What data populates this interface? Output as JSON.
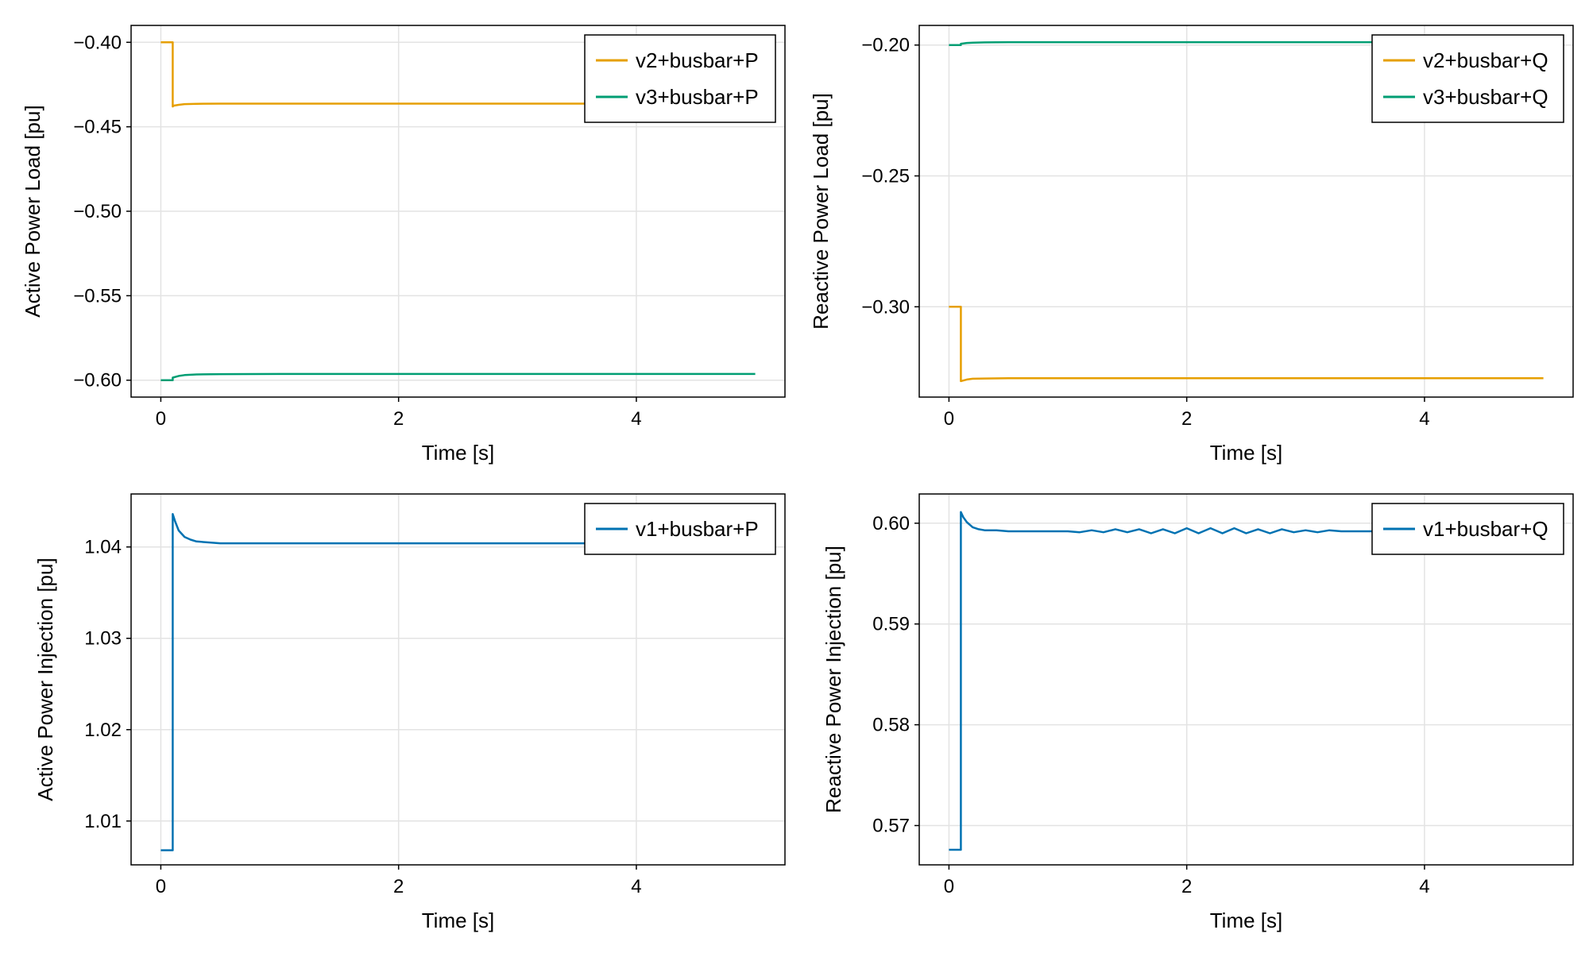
{
  "chart_data": [
    {
      "type": "line",
      "xlabel": "Time [s]",
      "ylabel": "Active Power Load [pu]",
      "xlim": [
        -0.25,
        5.25
      ],
      "ylim": [
        -0.61,
        -0.39
      ],
      "xticks": [
        0,
        2,
        4
      ],
      "xtick_labels": [
        "0",
        "2",
        "4"
      ],
      "yticks": [
        -0.4,
        -0.45,
        -0.5,
        -0.55,
        -0.6
      ],
      "ytick_labels": [
        "−0.40",
        "−0.45",
        "−0.50",
        "−0.55",
        "−0.60"
      ],
      "grid": true,
      "legend_position": "top-right",
      "series": [
        {
          "name": "v2+busbar+P",
          "color": "#E69F00",
          "x": [
            0,
            0.1,
            0.1,
            0.11,
            0.15,
            0.2,
            0.3,
            0.5,
            1.0,
            2.0,
            3.0,
            4.0,
            5.0
          ],
          "y": [
            -0.4,
            -0.4,
            -0.438,
            -0.4375,
            -0.437,
            -0.4366,
            -0.4364,
            -0.4363,
            -0.4363,
            -0.4363,
            -0.4363,
            -0.4363,
            -0.4363
          ]
        },
        {
          "name": "v3+busbar+P",
          "color": "#009E73",
          "x": [
            0,
            0.1,
            0.1,
            0.15,
            0.2,
            0.3,
            0.5,
            1.0,
            2.0,
            3.0,
            4.0,
            5.0
          ],
          "y": [
            -0.6,
            -0.6,
            -0.5985,
            -0.5975,
            -0.597,
            -0.5966,
            -0.5964,
            -0.5963,
            -0.5963,
            -0.5963,
            -0.5963,
            -0.5963
          ]
        }
      ]
    },
    {
      "type": "line",
      "xlabel": "Time [s]",
      "ylabel": "Reactive Power Load [pu]",
      "xlim": [
        -0.25,
        5.25
      ],
      "ylim": [
        -0.3345,
        -0.1925
      ],
      "xticks": [
        0,
        2,
        4
      ],
      "xtick_labels": [
        "0",
        "2",
        "4"
      ],
      "yticks": [
        -0.2,
        -0.25,
        -0.3
      ],
      "ytick_labels": [
        "−0.20",
        "−0.25",
        "−0.30"
      ],
      "grid": true,
      "legend_position": "top-right",
      "series": [
        {
          "name": "v2+busbar+Q",
          "color": "#E69F00",
          "x": [
            0,
            0.1,
            0.1,
            0.15,
            0.2,
            0.3,
            0.5,
            1.0,
            2.0,
            3.0,
            4.0,
            5.0
          ],
          "y": [
            -0.3,
            -0.3,
            -0.3284,
            -0.3278,
            -0.3275,
            -0.3274,
            -0.3273,
            -0.3273,
            -0.3273,
            -0.3273,
            -0.3273,
            -0.3273
          ]
        },
        {
          "name": "v3+busbar+Q",
          "color": "#009E73",
          "x": [
            0,
            0.1,
            0.1,
            0.15,
            0.2,
            0.3,
            0.5,
            1.0,
            2.0,
            3.0,
            4.0,
            5.0
          ],
          "y": [
            -0.2,
            -0.2,
            -0.1995,
            -0.1992,
            -0.1991,
            -0.199,
            -0.1989,
            -0.1989,
            -0.1989,
            -0.1989,
            -0.1989,
            -0.1989
          ]
        }
      ]
    },
    {
      "type": "line",
      "xlabel": "Time [s]",
      "ylabel": "Active Power Injection [pu]",
      "xlim": [
        -0.25,
        5.25
      ],
      "ylim": [
        1.0052,
        1.0458
      ],
      "xticks": [
        0,
        2,
        4
      ],
      "xtick_labels": [
        "0",
        "2",
        "4"
      ],
      "yticks": [
        1.01,
        1.02,
        1.03,
        1.04
      ],
      "ytick_labels": [
        "1.01",
        "1.02",
        "1.03",
        "1.04"
      ],
      "grid": true,
      "legend_position": "top-right",
      "series": [
        {
          "name": "v1+busbar+P",
          "color": "#0072B2",
          "x": [
            0,
            0.1,
            0.1,
            0.12,
            0.15,
            0.2,
            0.25,
            0.3,
            0.4,
            0.5,
            0.7,
            1.0,
            2.0,
            3.0,
            4.0,
            5.0
          ],
          "y": [
            1.0068,
            1.0068,
            1.0436,
            1.0428,
            1.0418,
            1.0411,
            1.0408,
            1.0406,
            1.0405,
            1.0404,
            1.0404,
            1.0404,
            1.0404,
            1.0404,
            1.0404,
            1.0404
          ]
        }
      ]
    },
    {
      "type": "line",
      "xlabel": "Time [s]",
      "ylabel": "Reactive Power Injection [pu]",
      "xlim": [
        -0.25,
        5.25
      ],
      "ylim": [
        0.5661,
        0.6029
      ],
      "xticks": [
        0,
        2,
        4
      ],
      "xtick_labels": [
        "0",
        "2",
        "4"
      ],
      "yticks": [
        0.57,
        0.58,
        0.59,
        0.6
      ],
      "ytick_labels": [
        "0.57",
        "0.58",
        "0.59",
        "0.60"
      ],
      "grid": true,
      "legend_position": "top-right",
      "series": [
        {
          "name": "v1+busbar+Q",
          "color": "#0072B2",
          "x": [
            0,
            0.1,
            0.1,
            0.12,
            0.15,
            0.2,
            0.25,
            0.3,
            0.4,
            0.5,
            0.7,
            1.0,
            1.1,
            1.2,
            1.3,
            1.4,
            1.5,
            1.6,
            1.7,
            1.8,
            1.9,
            2.0,
            2.1,
            2.2,
            2.3,
            2.4,
            2.5,
            2.6,
            2.7,
            2.8,
            2.9,
            3.0,
            3.1,
            3.2,
            3.3,
            3.5,
            4.0,
            4.5,
            5.0
          ],
          "y": [
            0.5676,
            0.5676,
            0.6011,
            0.6006,
            0.6001,
            0.5996,
            0.5994,
            0.5993,
            0.5993,
            0.5992,
            0.5992,
            0.5992,
            0.5991,
            0.5993,
            0.5991,
            0.5994,
            0.5991,
            0.5994,
            0.599,
            0.5994,
            0.599,
            0.5995,
            0.599,
            0.5995,
            0.599,
            0.5995,
            0.599,
            0.5994,
            0.599,
            0.5994,
            0.5991,
            0.5993,
            0.5991,
            0.5993,
            0.5992,
            0.5992,
            0.5992,
            0.5992,
            0.5992
          ]
        }
      ]
    }
  ]
}
